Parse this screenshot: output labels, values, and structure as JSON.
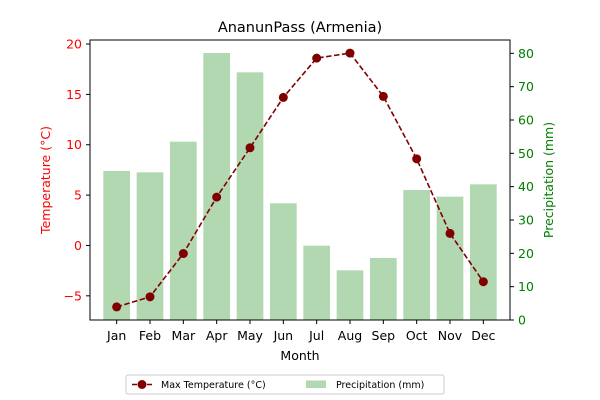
{
  "chart_data": {
    "type": "bar+line",
    "title": "AnanunPass (Armenia)",
    "xlabel": "Month",
    "categories": [
      "Jan",
      "Feb",
      "Mar",
      "Apr",
      "May",
      "Jun",
      "Jul",
      "Aug",
      "Sep",
      "Oct",
      "Nov",
      "Dec"
    ],
    "left_axis": {
      "label": "Temperature (°C)",
      "color": "#ff0000",
      "ylim": [
        -7.4,
        20.4
      ],
      "ticks": [
        -5,
        0,
        5,
        10,
        15,
        20
      ],
      "tick_labels": [
        "−5",
        "0",
        "5",
        "10",
        "15",
        "20"
      ]
    },
    "right_axis": {
      "label": "Precipitation (mm)",
      "color": "#008000",
      "ylim": [
        0,
        84
      ],
      "ticks": [
        0,
        10,
        20,
        30,
        40,
        50,
        60,
        70,
        80
      ],
      "tick_labels": [
        "0",
        "10",
        "20",
        "30",
        "40",
        "50",
        "60",
        "70",
        "80"
      ]
    },
    "series": [
      {
        "name": "Max Temperature (°C)",
        "kind": "line",
        "axis": "left",
        "color": "#800000",
        "linestyle": "dashed",
        "marker": "circle",
        "values": [
          -6.1,
          -5.1,
          -0.8,
          4.8,
          9.7,
          14.7,
          18.6,
          19.1,
          14.8,
          8.6,
          1.2,
          -3.6
        ]
      },
      {
        "name": "Precipitation (mm)",
        "kind": "bar",
        "axis": "right",
        "color": "#b1d8b1",
        "values": [
          44.7,
          44.3,
          53.5,
          80.1,
          74.3,
          35.0,
          22.3,
          14.9,
          18.6,
          39.0,
          37.0,
          40.7
        ]
      }
    ],
    "legend": {
      "placement": "bottom-center",
      "columns": 2
    },
    "grid": false
  }
}
